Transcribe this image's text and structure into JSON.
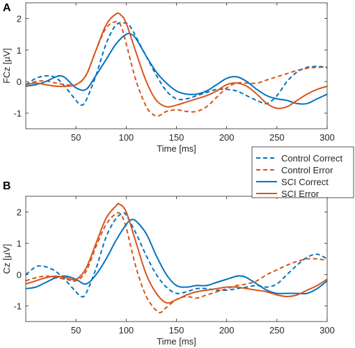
{
  "chart_data": [
    {
      "panel_label": "A",
      "type": "line",
      "ylabel": "FCz [µV]",
      "xlabel": "Time [ms]",
      "xlim": [
        0,
        300
      ],
      "ylim": [
        -1.5,
        2.5
      ],
      "xticks": [
        50,
        100,
        150,
        200,
        250,
        300
      ],
      "yticks": [
        -1,
        0,
        1,
        2
      ],
      "grid": false,
      "series": [
        {
          "name": "Control Correct",
          "color": "#0072BD",
          "dash": true,
          "x": [
            0,
            10,
            20,
            30,
            40,
            50,
            55,
            60,
            70,
            80,
            90,
            100,
            105,
            110,
            120,
            130,
            140,
            150,
            160,
            170,
            180,
            190,
            200,
            210,
            220,
            230,
            240,
            250,
            260,
            270,
            280,
            290,
            300
          ],
          "y": [
            -0.1,
            0.1,
            0.18,
            0.12,
            -0.2,
            -0.6,
            -0.75,
            -0.6,
            0.2,
            1.2,
            1.8,
            1.85,
            1.7,
            1.4,
            0.8,
            0.2,
            -0.3,
            -0.55,
            -0.55,
            -0.45,
            -0.35,
            -0.25,
            -0.25,
            -0.3,
            -0.45,
            -0.6,
            -0.7,
            -0.45,
            0,
            0.3,
            0.45,
            0.48,
            0.45
          ]
        },
        {
          "name": "Control Error",
          "color": "#D95319",
          "dash": true,
          "x": [
            0,
            10,
            20,
            30,
            40,
            50,
            60,
            70,
            80,
            90,
            95,
            100,
            110,
            120,
            125,
            130,
            135,
            140,
            150,
            160,
            170,
            180,
            190,
            200,
            210,
            220,
            230,
            240,
            250,
            260,
            270,
            280,
            290,
            300
          ],
          "y": [
            -0.1,
            0.0,
            0.02,
            -0.05,
            -0.1,
            -0.1,
            0.2,
            1.0,
            1.7,
            1.9,
            1.75,
            1.2,
            0.0,
            -0.8,
            -1.0,
            -1.1,
            -1.05,
            -0.95,
            -0.9,
            -0.95,
            -0.95,
            -0.8,
            -0.5,
            -0.2,
            -0.05,
            -0.05,
            -0.05,
            0.05,
            0.15,
            0.25,
            0.35,
            0.42,
            0.45,
            0.45
          ]
        },
        {
          "name": "SCI Correct",
          "color": "#0072BD",
          "dash": false,
          "x": [
            0,
            10,
            20,
            30,
            35,
            40,
            50,
            60,
            70,
            80,
            90,
            100,
            105,
            110,
            120,
            130,
            140,
            150,
            160,
            170,
            180,
            190,
            200,
            210,
            220,
            230,
            240,
            250,
            260,
            270,
            280,
            290,
            300
          ],
          "y": [
            -0.15,
            -0.1,
            0.0,
            0.15,
            0.18,
            0.1,
            -0.2,
            -0.25,
            0.2,
            0.7,
            1.2,
            1.5,
            1.5,
            1.35,
            0.8,
            0.3,
            -0.05,
            -0.3,
            -0.4,
            -0.4,
            -0.3,
            -0.1,
            0.1,
            0.15,
            0.0,
            -0.25,
            -0.45,
            -0.55,
            -0.6,
            -0.7,
            -0.7,
            -0.55,
            -0.4
          ]
        },
        {
          "name": "SCI Error",
          "color": "#D95319",
          "dash": false,
          "x": [
            0,
            10,
            20,
            30,
            40,
            50,
            60,
            70,
            80,
            90,
            95,
            100,
            110,
            120,
            130,
            140,
            150,
            160,
            170,
            180,
            190,
            200,
            210,
            220,
            230,
            240,
            250,
            260,
            270,
            280,
            290,
            300
          ],
          "y": [
            -0.1,
            -0.05,
            -0.1,
            -0.15,
            -0.15,
            -0.1,
            0.2,
            1.0,
            1.8,
            2.15,
            2.1,
            1.85,
            0.9,
            0.0,
            -0.6,
            -0.8,
            -0.75,
            -0.65,
            -0.55,
            -0.45,
            -0.3,
            -0.1,
            -0.05,
            -0.15,
            -0.4,
            -0.7,
            -0.85,
            -0.8,
            -0.6,
            -0.4,
            -0.25,
            -0.15
          ]
        }
      ]
    },
    {
      "panel_label": "B",
      "type": "line",
      "ylabel": "Cz [µV]",
      "xlabel": "Time [ms]",
      "xlim": [
        0,
        300
      ],
      "ylim": [
        -1.5,
        2.5
      ],
      "xticks": [
        50,
        100,
        150,
        200,
        250,
        300
      ],
      "yticks": [
        -1,
        0,
        1,
        2
      ],
      "grid": false,
      "series": [
        {
          "name": "Control Correct",
          "color": "#0072BD",
          "dash": true,
          "x": [
            0,
            10,
            15,
            20,
            30,
            40,
            50,
            55,
            60,
            70,
            80,
            90,
            97,
            100,
            110,
            120,
            130,
            140,
            150,
            160,
            170,
            180,
            190,
            200,
            210,
            220,
            230,
            240,
            250,
            260,
            270,
            280,
            290,
            300
          ],
          "y": [
            0.0,
            0.25,
            0.27,
            0.25,
            0.1,
            -0.2,
            -0.55,
            -0.7,
            -0.6,
            0.2,
            1.2,
            1.8,
            1.95,
            1.9,
            1.3,
            0.6,
            0.0,
            -0.4,
            -0.6,
            -0.55,
            -0.45,
            -0.45,
            -0.5,
            -0.5,
            -0.45,
            -0.4,
            -0.35,
            -0.4,
            -0.3,
            0.0,
            0.3,
            0.55,
            0.65,
            0.5
          ]
        },
        {
          "name": "Control Error",
          "color": "#D95319",
          "dash": true,
          "x": [
            0,
            10,
            20,
            30,
            40,
            50,
            60,
            70,
            80,
            90,
            95,
            100,
            110,
            120,
            130,
            135,
            140,
            150,
            160,
            170,
            180,
            190,
            200,
            210,
            220,
            230,
            240,
            250,
            260,
            270,
            280,
            290,
            300
          ],
          "y": [
            -0.2,
            -0.1,
            -0.05,
            -0.1,
            -0.15,
            -0.2,
            0.1,
            0.9,
            1.6,
            1.95,
            1.9,
            1.5,
            0.2,
            -0.7,
            -1.15,
            -1.2,
            -1.05,
            -0.8,
            -0.7,
            -0.75,
            -0.65,
            -0.55,
            -0.45,
            -0.35,
            -0.3,
            -0.2,
            0.0,
            0.15,
            0.3,
            0.42,
            0.5,
            0.5,
            0.45
          ]
        },
        {
          "name": "SCI Correct",
          "color": "#0072BD",
          "dash": false,
          "x": [
            0,
            10,
            20,
            30,
            40,
            50,
            60,
            70,
            80,
            90,
            100,
            105,
            110,
            120,
            130,
            140,
            150,
            160,
            170,
            180,
            190,
            200,
            210,
            215,
            220,
            230,
            240,
            250,
            260,
            270,
            280,
            290,
            300
          ],
          "y": [
            -0.45,
            -0.4,
            -0.25,
            -0.1,
            -0.05,
            -0.15,
            -0.3,
            0.0,
            0.5,
            1.1,
            1.6,
            1.75,
            1.7,
            1.3,
            0.6,
            0.0,
            -0.35,
            -0.4,
            -0.35,
            -0.35,
            -0.25,
            -0.15,
            -0.05,
            -0.05,
            -0.1,
            -0.3,
            -0.5,
            -0.6,
            -0.6,
            -0.6,
            -0.6,
            -0.45,
            -0.2
          ]
        },
        {
          "name": "SCI Error",
          "color": "#D95319",
          "dash": false,
          "x": [
            0,
            10,
            20,
            30,
            40,
            50,
            60,
            70,
            80,
            90,
            93,
            100,
            110,
            120,
            130,
            140,
            150,
            160,
            170,
            180,
            190,
            200,
            210,
            220,
            230,
            240,
            250,
            260,
            270,
            280,
            290,
            300
          ],
          "y": [
            -0.3,
            -0.2,
            -0.1,
            -0.05,
            -0.1,
            -0.15,
            0.2,
            1.0,
            1.8,
            2.2,
            2.25,
            2.0,
            1.0,
            0.0,
            -0.6,
            -0.9,
            -0.8,
            -0.65,
            -0.55,
            -0.5,
            -0.45,
            -0.4,
            -0.4,
            -0.45,
            -0.5,
            -0.55,
            -0.65,
            -0.7,
            -0.65,
            -0.5,
            -0.35,
            -0.15
          ]
        }
      ]
    }
  ],
  "legend": {
    "entries": [
      "Control Correct",
      "Control Error",
      "SCI Correct",
      "SCI Error"
    ]
  }
}
